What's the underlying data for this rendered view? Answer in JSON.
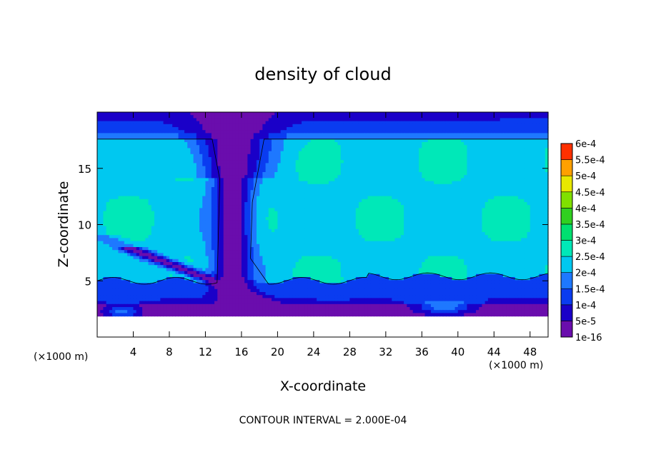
{
  "chart_data": {
    "type": "heatmap",
    "title": "density of cloud",
    "xlabel": "X-coordinate",
    "ylabel": "Z-coordinate",
    "x_unit_left": "(×1000 m)",
    "x_unit_right": "(×1000 m)",
    "xlim": [
      0,
      50
    ],
    "ylim": [
      0,
      20
    ],
    "x_ticks": [
      4,
      8,
      12,
      16,
      20,
      24,
      28,
      32,
      36,
      40,
      44,
      48
    ],
    "y_ticks": [
      5,
      10,
      15
    ],
    "footer": "CONTOUR INTERVAL = 2.000E-04",
    "colorbar": {
      "labels": [
        "1e-16",
        "5e-5",
        "1e-4",
        "1.5e-4",
        "2e-4",
        "2.5e-4",
        "3e-4",
        "3.5e-4",
        "4e-4",
        "4.5e-4",
        "5e-4",
        "5.5e-4",
        "6e-4"
      ],
      "colors": [
        "#6a0dad",
        "#1a00c8",
        "#0a3cf0",
        "#1e78ff",
        "#00c8f0",
        "#00e8b8",
        "#00e070",
        "#30d020",
        "#80e000",
        "#e8e800",
        "#ffa000",
        "#ff3000",
        "#ff8080"
      ]
    },
    "fields": {
      "contour_level": 0.0002,
      "background_level": 0.00024,
      "lower_boundary_z": 2.0,
      "anvil_top_z": 17.6,
      "layer_base_z": 5.0,
      "column_x": 15.0,
      "left_hotspot": {
        "x": 2.8,
        "z": 2.3
      },
      "right_hotspot": {
        "x": 38.5,
        "z": 2.7
      }
    }
  }
}
